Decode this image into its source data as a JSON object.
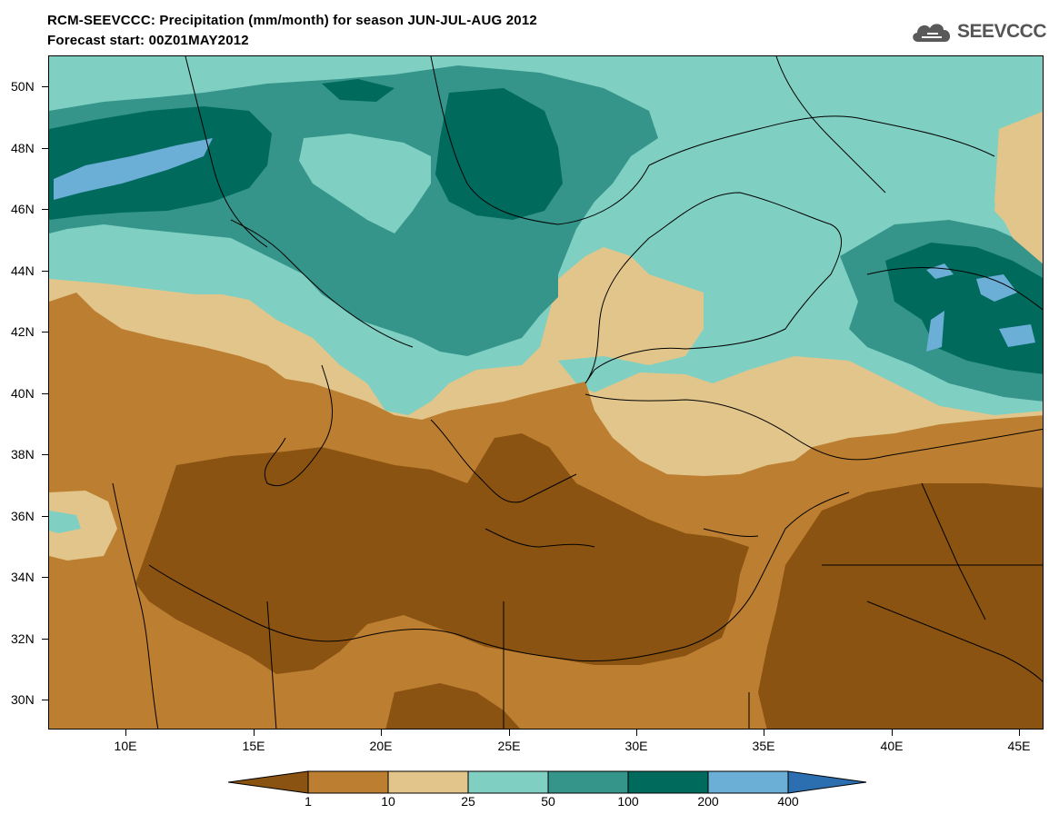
{
  "title": {
    "line1": "RCM-SEEVCCC: Precipitation (mm/month) for season JUN-JUL-AUG 2012",
    "line2": "Forecast start: 00Z01MAY2012"
  },
  "logo": {
    "text": "SEEVCCC",
    "icon": "cloud-icon"
  },
  "map": {
    "type": "filled-contour",
    "lat_range": [
      29,
      51
    ],
    "lon_range": [
      7,
      46
    ],
    "lat_ticks": [
      "50N",
      "48N",
      "46N",
      "44N",
      "42N",
      "40N",
      "38N",
      "36N",
      "34N",
      "32N",
      "30N"
    ],
    "lon_ticks": [
      "10E",
      "15E",
      "20E",
      "25E",
      "30E",
      "35E",
      "40E",
      "45E"
    ]
  },
  "colorbar": {
    "labels": [
      "1",
      "10",
      "25",
      "50",
      "100",
      "200",
      "400"
    ],
    "colors": [
      "#8b5311",
      "#bc7e30",
      "#e2c58a",
      "#7fd0c2",
      "#35958a",
      "#006a5d",
      "#6baed6",
      "#2c6fb0"
    ]
  }
}
